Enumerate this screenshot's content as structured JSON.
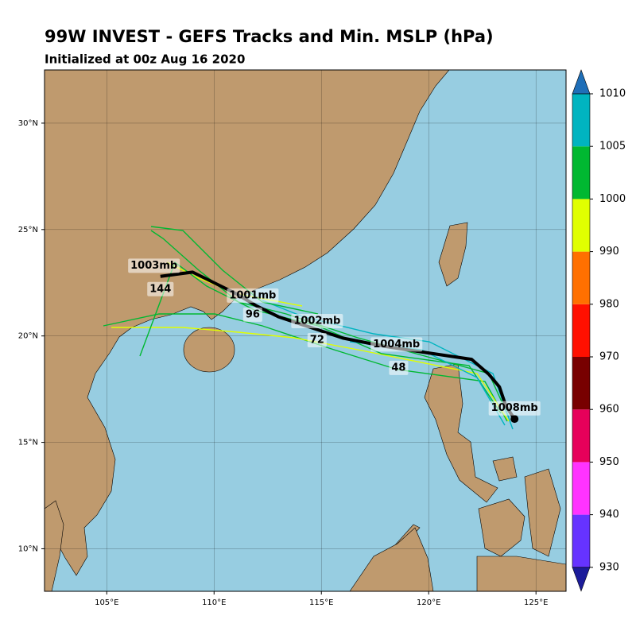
{
  "title": "99W INVEST - GEFS Tracks and Min. MSLP (hPa)",
  "subtitle": "Initialized at 00z Aug 16 2020",
  "map": {
    "lon_range": [
      102.1,
      126.4
    ],
    "lat_range": [
      8,
      32.5
    ],
    "ocean_color": "#97cde1",
    "land_color": "#bf9a6e",
    "lon_ticks": [
      {
        "value": 105,
        "label": "105°E"
      },
      {
        "value": 110,
        "label": "110°E"
      },
      {
        "value": 115,
        "label": "115°E"
      },
      {
        "value": 120,
        "label": "120°E"
      },
      {
        "value": 125,
        "label": "125°E"
      }
    ],
    "lat_ticks": [
      {
        "value": 10,
        "label": "10°N"
      },
      {
        "value": 15,
        "label": "15°N"
      },
      {
        "value": 20,
        "label": "20°N"
      },
      {
        "value": 25,
        "label": "25°N"
      },
      {
        "value": 30,
        "label": "30°N"
      }
    ]
  },
  "mean_track": {
    "color": "#000000",
    "lon": [
      124,
      123.6,
      123.3,
      122.8,
      122,
      120,
      118,
      116,
      114.8,
      113,
      112,
      111,
      110,
      109,
      107.5
    ],
    "lat": [
      16.1,
      16.7,
      17.6,
      18.2,
      18.9,
      19.2,
      19.5,
      19.9,
      20.3,
      20.9,
      21.4,
      22,
      22.5,
      23,
      22.8
    ],
    "labels": [
      {
        "text": "1008mb",
        "lon": 124,
        "lat": 16.6
      },
      {
        "text": "48",
        "lon": 118.6,
        "lat": 18.5
      },
      {
        "text": "1004mb",
        "lon": 118.5,
        "lat": 19.6
      },
      {
        "text": "72",
        "lon": 114.8,
        "lat": 19.8
      },
      {
        "text": "1002mb",
        "lon": 114.8,
        "lat": 20.7
      },
      {
        "text": "96",
        "lon": 111.8,
        "lat": 21.0
      },
      {
        "text": "1001mb",
        "lon": 111.8,
        "lat": 21.9
      },
      {
        "text": "144",
        "lon": 107.5,
        "lat": 22.2
      },
      {
        "text": "1003mb",
        "lon": 107.2,
        "lat": 23.3
      }
    ]
  },
  "colorbar": {
    "ticks": [
      930,
      940,
      950,
      960,
      970,
      980,
      990,
      1000,
      1005,
      1010
    ],
    "colors": [
      "#6633ff",
      "#ff33ff",
      "#e6005a",
      "#780000",
      "#ff1000",
      "#ff7000",
      "#e0ff00",
      "#00b831",
      "#00b4c0"
    ],
    "under_color": "#1c1c9a",
    "over_color": "#1f6fb8"
  }
}
